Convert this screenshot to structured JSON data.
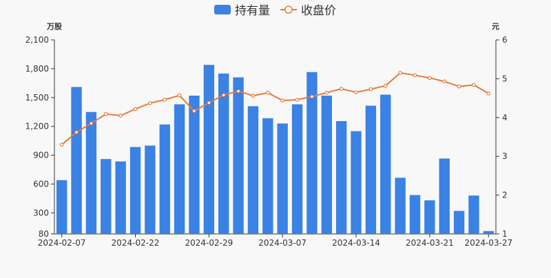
{
  "chart_data": {
    "type": "bar",
    "legend": {
      "placement": "top-center",
      "items": [
        {
          "label": "持有量",
          "kind": "bar",
          "color": "#3a82e4"
        },
        {
          "label": "收盘价",
          "kind": "line",
          "color": "#e8793a"
        }
      ]
    },
    "left_axis": {
      "unit_label": "万股",
      "range": [
        80,
        2100
      ],
      "ticks": [
        80,
        300,
        600,
        900,
        1200,
        1500,
        1800,
        2100
      ],
      "tick_labels": [
        "80",
        "300",
        "600",
        "900",
        "1,200",
        "1,500",
        "1,800",
        "2,100"
      ]
    },
    "right_axis": {
      "unit_label": "元",
      "range": [
        1,
        6
      ],
      "ticks": [
        1,
        2,
        3,
        4,
        5,
        6
      ],
      "tick_labels": [
        "1",
        "2",
        "3",
        "4",
        "5",
        "6"
      ]
    },
    "x_tick_labels": [
      {
        "index": 0,
        "label": "2024-02-07"
      },
      {
        "index": 5,
        "label": "2024-02-22"
      },
      {
        "index": 10,
        "label": "2024-02-29"
      },
      {
        "index": 15,
        "label": "2024-03-07"
      },
      {
        "index": 20,
        "label": "2024-03-14"
      },
      {
        "index": 25,
        "label": "2024-03-21"
      },
      {
        "index": 29,
        "label": "2024-03-27"
      }
    ],
    "series": [
      {
        "name": "持有量",
        "type": "bar",
        "axis": "left",
        "color": "#3a82e4",
        "values": [
          640,
          1610,
          1350,
          860,
          835,
          985,
          1000,
          1220,
          1430,
          1520,
          1840,
          1750,
          1710,
          1410,
          1285,
          1230,
          1430,
          1765,
          1520,
          1255,
          1150,
          1415,
          1530,
          665,
          485,
          430,
          865,
          320,
          480,
          110
        ]
      },
      {
        "name": "收盘价",
        "type": "line",
        "axis": "right",
        "color": "#e8793a",
        "values": [
          3.3,
          3.62,
          3.85,
          4.09,
          4.05,
          4.22,
          4.37,
          4.46,
          4.57,
          4.17,
          4.38,
          4.58,
          4.68,
          4.56,
          4.64,
          4.44,
          4.46,
          4.54,
          4.64,
          4.74,
          4.65,
          4.73,
          4.82,
          5.15,
          5.09,
          5.02,
          4.93,
          4.8,
          4.84,
          4.62
        ]
      }
    ]
  }
}
